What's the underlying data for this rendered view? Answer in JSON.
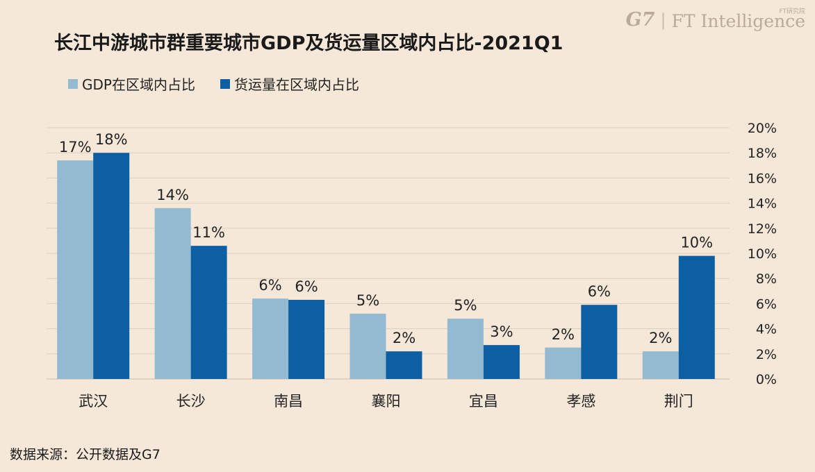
{
  "brand": {
    "g7": "G7",
    "separator": "|",
    "ft_sub": "FT研究院",
    "ft_main": "FT Intelligence"
  },
  "source": "数据来源：公开数据及G7",
  "colors": {
    "background": "#f5e8d8",
    "gdp": "#93bad0",
    "freight": "#0d5fa3",
    "grid": "#dccfbf"
  },
  "chart_data": {
    "type": "bar",
    "title": "长江中游城市群重要城市GDP及货运量区域内占比-2021Q1",
    "categories": [
      "武汉",
      "长沙",
      "南昌",
      "襄阳",
      "宜昌",
      "孝感",
      "荆门"
    ],
    "series": [
      {
        "name": "GDP在区域内占比",
        "values": [
          17.4,
          13.6,
          6.4,
          5.2,
          4.8,
          2.5,
          2.2
        ],
        "labels": [
          "17%",
          "14%",
          "6%",
          "5%",
          "5%",
          "2%",
          "2%"
        ]
      },
      {
        "name": "货运量在区域内占比",
        "values": [
          18.0,
          10.6,
          6.3,
          2.2,
          2.7,
          5.9,
          9.8
        ],
        "labels": [
          "18%",
          "11%",
          "6%",
          "2%",
          "3%",
          "6%",
          "10%"
        ]
      }
    ],
    "yaxis_position": "right",
    "ylim": [
      0,
      20
    ],
    "yticks": [
      "0%",
      "2%",
      "4%",
      "6%",
      "8%",
      "10%",
      "12%",
      "14%",
      "16%",
      "18%",
      "20%"
    ],
    "grid": true,
    "legend_position": "top-left"
  }
}
